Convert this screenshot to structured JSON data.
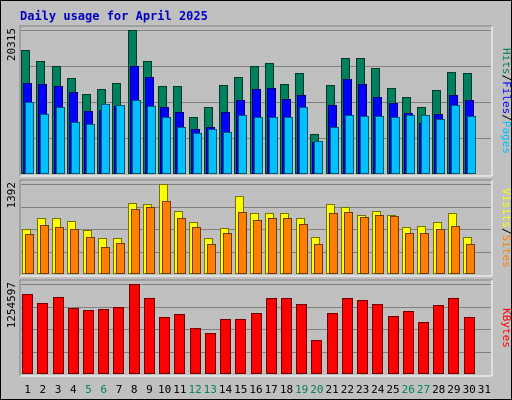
{
  "chart_data": {
    "type": "bar",
    "title": "Daily usage for April 2025",
    "x": [
      "1",
      "2",
      "3",
      "4",
      "5",
      "6",
      "7",
      "8",
      "9",
      "10",
      "11",
      "12",
      "13",
      "14",
      "15",
      "16",
      "17",
      "18",
      "19",
      "20",
      "21",
      "22",
      "23",
      "24",
      "25",
      "26",
      "27",
      "28",
      "29",
      "30",
      "31"
    ],
    "weekend_days": [
      "5",
      "6",
      "12",
      "13",
      "19",
      "20",
      "26",
      "27"
    ],
    "colors": {
      "hits": "#00805c",
      "files": "#0000ff",
      "pages": "#00c0ff",
      "visits": "#ffff00",
      "sites": "#ff8000",
      "kbytes": "#ff0000",
      "weekday_label": "#000000",
      "weekend_label": "#00805c",
      "title": "#0000c0",
      "background": "#c0c0c0",
      "plot_area": "#c0c0c0"
    },
    "panels": [
      {
        "ymax_label": "20315",
        "ymax": 20315,
        "series": [
          {
            "name": "Hits",
            "key": "hits",
            "values": [
              17500,
              16000,
              15300,
              13600,
              11300,
              12000,
              12900,
              20315,
              15900,
              12400,
              12400,
              8000,
              9500,
              12500,
              13700,
              15300,
              15600,
              12700,
              14300,
              5700,
              12500,
              16300,
              16300,
              15000,
              12200,
              10800,
              9400,
              11900,
              14400,
              14300,
              null
            ]
          },
          {
            "name": "Files",
            "key": "files",
            "values": [
              12800,
              12700,
              12400,
              11600,
              8900,
              9000,
              9600,
              15200,
              13700,
              9400,
              8800,
              6400,
              6600,
              8700,
              10500,
              12000,
              12200,
              10600,
              11100,
              4500,
              9700,
              13400,
              12700,
              10800,
              10000,
              8600,
              7200,
              8400,
              11100,
              10500,
              null
            ]
          },
          {
            "name": "Pages",
            "key": "pages",
            "values": [
              10200,
              8500,
              9500,
              7300,
              7000,
              9900,
              9700,
              10400,
              9600,
              8100,
              6700,
              5800,
              6400,
              5900,
              8300,
              8000,
              8100,
              8100,
              9500,
              4600,
              6600,
              8300,
              8200,
              8200,
              8100,
              8300,
              8300,
              7800,
              9700,
              8200,
              null
            ]
          }
        ],
        "legend": [
          "Pages",
          "Files",
          "Hits"
        ]
      },
      {
        "ymax_label": "1392",
        "ymax": 1392,
        "series": [
          {
            "name": "Visits",
            "key": "visits",
            "values": [
              690,
              870,
              860,
              820,
              680,
              560,
              550,
              1100,
              1080,
              1390,
              980,
              800,
              550,
              710,
              1200,
              950,
              940,
              950,
              860,
              570,
              1090,
              1040,
              910,
              980,
              920,
              730,
              740,
              810,
              950,
              580,
              null
            ]
          },
          {
            "name": "Sites",
            "key": "sites",
            "values": [
              620,
              760,
              730,
              690,
              580,
              410,
              480,
              1000,
              1030,
              1130,
              860,
              730,
              470,
              630,
              960,
              830,
              860,
              860,
              780,
              460,
              940,
              960,
              880,
              910,
              900,
              640,
              630,
              690,
              750,
              460,
              null
            ]
          }
        ],
        "legend": [
          "Sites",
          "Visits"
        ]
      },
      {
        "ymax_label": "1254597",
        "ymax": 1254597,
        "series": [
          {
            "name": "KBytes",
            "key": "kbytes",
            "values": [
              1115000,
              985000,
              1070000,
              920000,
              890000,
              900000,
              930000,
              1254597,
              1055000,
              795000,
              840000,
              640000,
              565000,
              770000,
              770000,
              850000,
              1055000,
              1055000,
              980000,
              480000,
              845000,
              1065000,
              1035000,
              970000,
              815000,
              885000,
              720000,
              955000,
              1060000,
              800000,
              null
            ]
          }
        ],
        "legend": [
          "KBytes"
        ]
      }
    ]
  }
}
